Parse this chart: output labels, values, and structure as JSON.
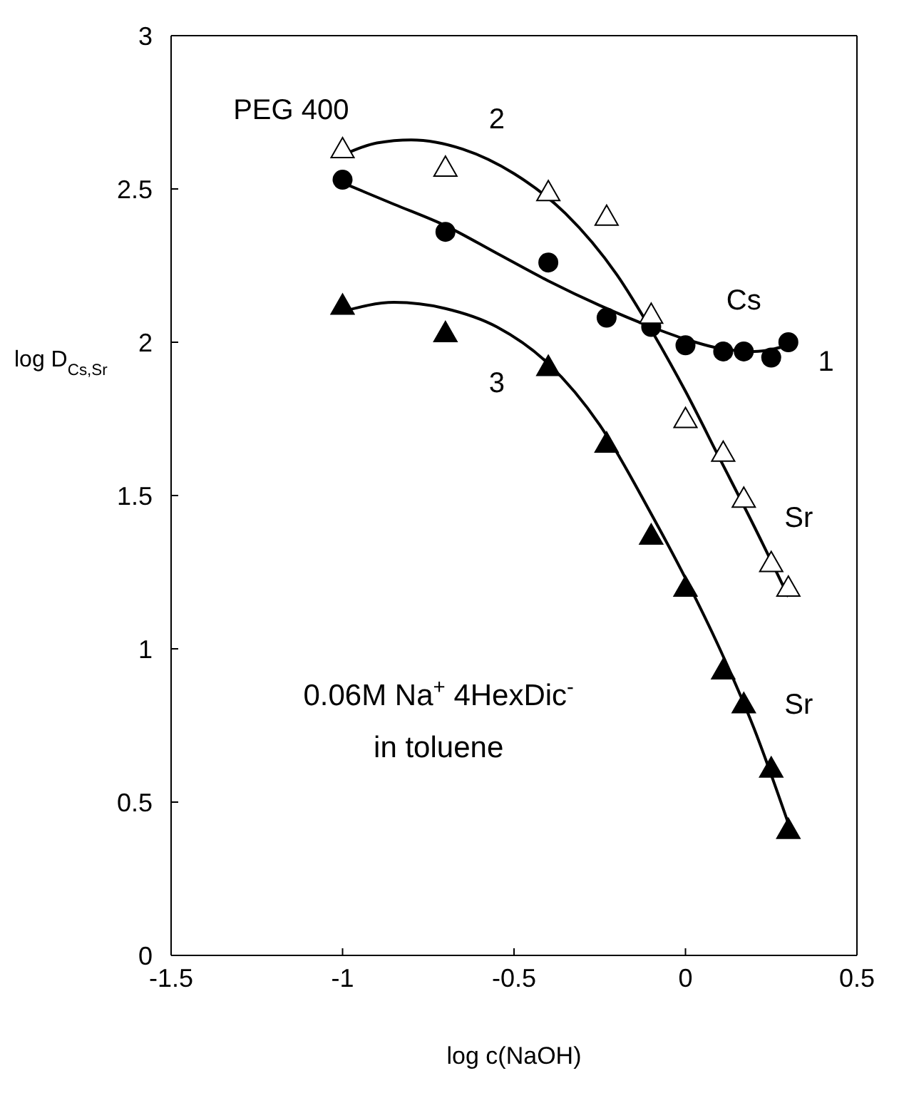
{
  "chart_data": {
    "type": "scatter",
    "xlabel": "log c(NaOH)",
    "ylabel": "log D$_{Cs,Sr}$",
    "xlim": [
      -1.5,
      0.5
    ],
    "xticks": [
      -1.5,
      -1,
      -0.5,
      0,
      0.5
    ],
    "ylim": [
      0,
      3
    ],
    "yticks": [
      0,
      0.5,
      1,
      1.5,
      2,
      2.5,
      3
    ],
    "grid": false,
    "legend": false,
    "series": [
      {
        "marker": "circle",
        "color": "#000000",
        "x": [
          -1,
          -0.7,
          -0.4,
          -0.23,
          -0.1,
          0,
          0.11,
          0.17,
          0.25,
          0.3
        ],
        "values": [
          2.53,
          2.36,
          2.26,
          2.08,
          2.05,
          1.99,
          1.97,
          1.97,
          1.95,
          2.0
        ]
      },
      {
        "marker": "triangle",
        "color": "#ffffff",
        "x": [
          -1,
          -0.7,
          -0.4,
          -0.23,
          -0.1,
          0,
          0.11,
          0.17,
          0.25,
          0.3
        ],
        "values": [
          2.63,
          2.57,
          2.49,
          2.41,
          2.09,
          1.75,
          1.64,
          1.49,
          1.28,
          1.2
        ]
      },
      {
        "marker": "triangle",
        "color": "#000000",
        "x": [
          -1,
          -0.7,
          -0.4,
          -0.23,
          -0.1,
          0,
          0.11,
          0.17,
          0.25,
          0.3
        ],
        "values": [
          2.12,
          2.03,
          1.92,
          1.67,
          1.37,
          1.2,
          0.93,
          0.82,
          0.61,
          0.41
        ]
      },
      {
        "type": "line",
        "marker": "none",
        "color": "#000000",
        "x": [
          -1,
          -0.85,
          -0.7,
          -0.55,
          -0.4,
          -0.25,
          -0.1,
          0,
          0.1,
          0.2,
          0.3
        ],
        "values": [
          2.52,
          2.45,
          2.38,
          2.29,
          2.2,
          2.12,
          2.05,
          2.01,
          1.98,
          1.97,
          1.99
        ]
      },
      {
        "type": "line",
        "marker": "none",
        "color": "#000000",
        "x": [
          -1,
          -0.9,
          -0.8,
          -0.65,
          -0.5,
          -0.35,
          -0.2,
          -0.1,
          0,
          0.1,
          0.2,
          0.3
        ],
        "values": [
          2.61,
          2.65,
          2.66,
          2.63,
          2.55,
          2.42,
          2.22,
          2.04,
          1.84,
          1.62,
          1.4,
          1.17
        ]
      },
      {
        "type": "line",
        "marker": "none",
        "color": "#000000",
        "x": [
          -1,
          -0.85,
          -0.7,
          -0.55,
          -0.4,
          -0.25,
          -0.1,
          0,
          0.1,
          0.2,
          0.3
        ],
        "values": [
          2.1,
          2.13,
          2.11,
          2.05,
          1.93,
          1.73,
          1.44,
          1.23,
          1.0,
          0.74,
          0.43
        ]
      }
    ],
    "annotations": [
      "PEG 400",
      "2",
      "1",
      "3",
      "Cs",
      "Sr",
      "Sr",
      "0.06M Na$^{+}$ 4HexDic$^{-}$",
      "in toluene"
    ]
  }
}
